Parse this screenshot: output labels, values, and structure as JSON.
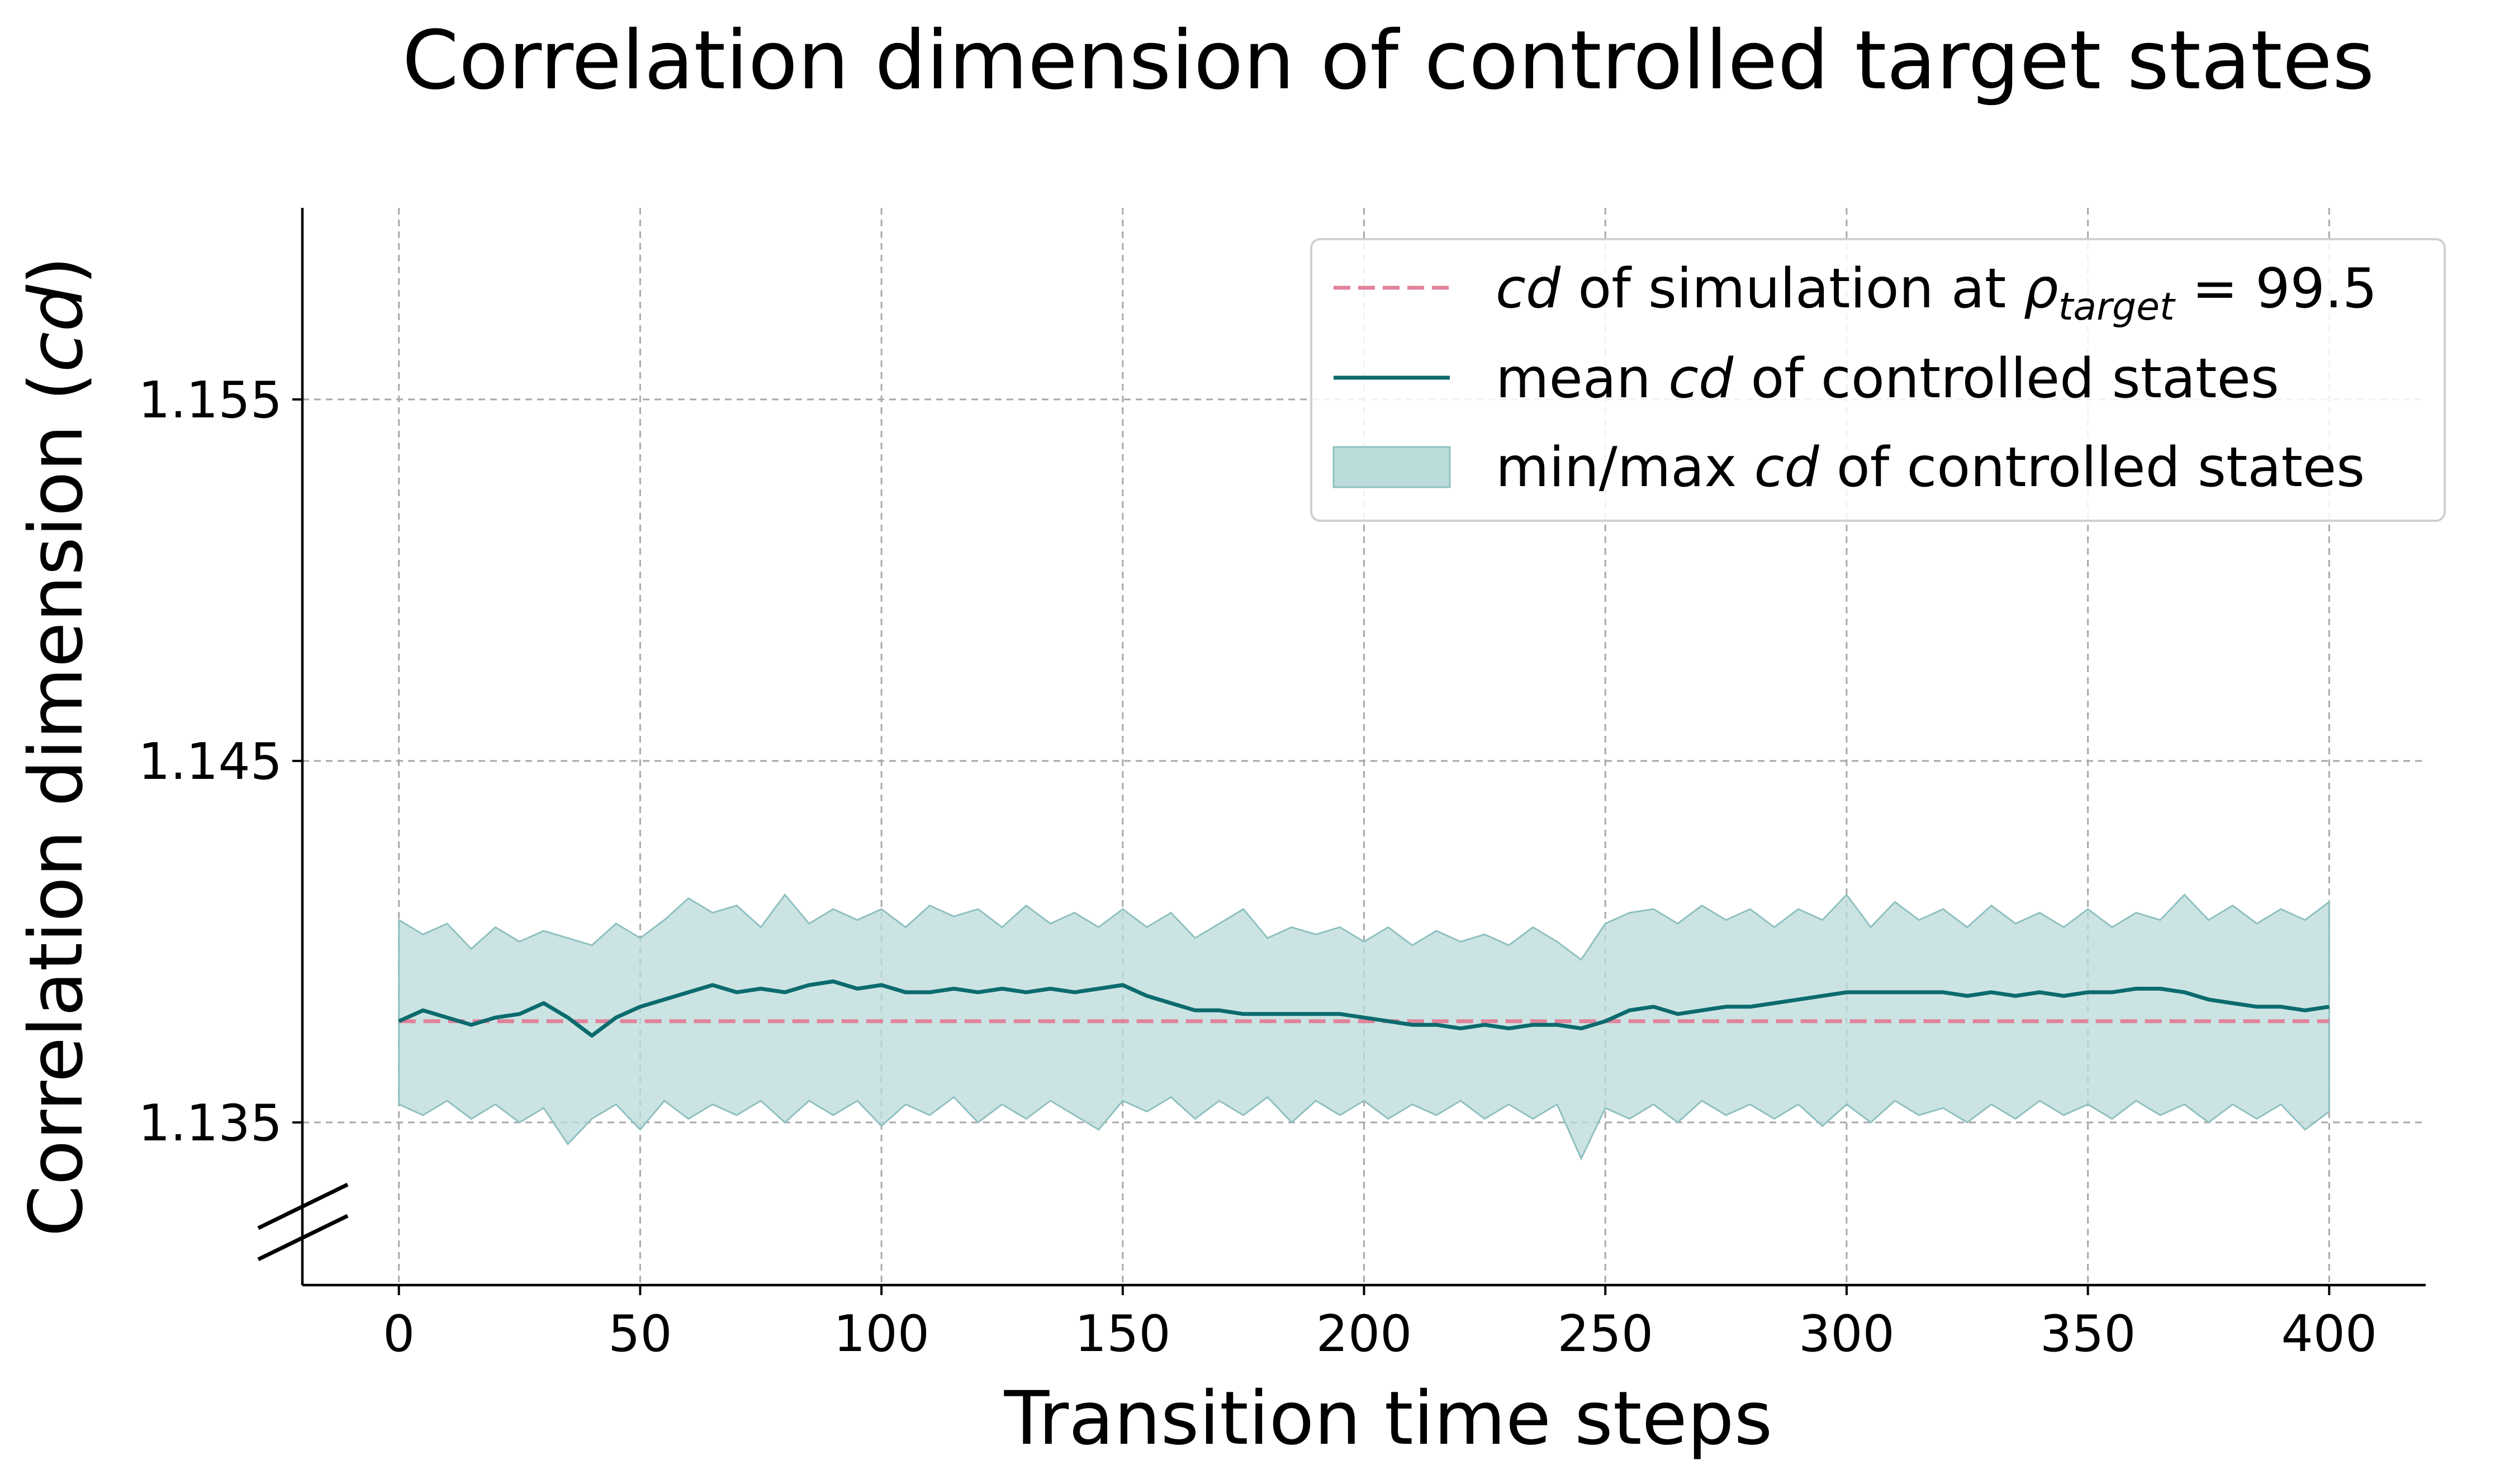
{
  "chart_data": {
    "type": "line",
    "title": "Correlation dimension of controlled target states",
    "xlabel": "Transition time steps",
    "ylabel_parts": {
      "main": "Correlation dimension (",
      "italic": "cd",
      "close": ")"
    },
    "xlim": [
      -20,
      420
    ],
    "ylim": [
      1.1305,
      1.1603
    ],
    "xticks": [
      0,
      50,
      100,
      150,
      200,
      250,
      300,
      350,
      400
    ],
    "xtick_labels": [
      "0",
      "50",
      "100",
      "150",
      "200",
      "250",
      "300",
      "350",
      "400"
    ],
    "yticks": [
      1.135,
      1.145,
      1.155
    ],
    "ytick_labels": [
      "1.135",
      "1.145",
      "1.155"
    ],
    "grid": true,
    "axis_break": "bottom-left of y axis",
    "legend_position": "top-right",
    "legend": [
      {
        "key": "ref",
        "style": "dashed-line",
        "parts": [
          {
            "text": "cd",
            "italic": true
          },
          {
            "text": " of simulation at ",
            "italic": false
          },
          {
            "text": "ρ",
            "italic": true
          },
          {
            "text": "target",
            "italic": true,
            "sub": true
          },
          {
            "text": " = 99.5",
            "italic": false
          }
        ]
      },
      {
        "key": "mean",
        "style": "line",
        "parts": [
          {
            "text": "mean ",
            "italic": false
          },
          {
            "text": "cd",
            "italic": true
          },
          {
            "text": " of controlled states",
            "italic": false
          }
        ]
      },
      {
        "key": "band",
        "style": "patch",
        "parts": [
          {
            "text": "min/max ",
            "italic": false
          },
          {
            "text": "cd",
            "italic": true
          },
          {
            "text": " of controlled states",
            "italic": false
          }
        ]
      }
    ],
    "colors": {
      "reference": "#e0839b",
      "mean": "#0c6b6e",
      "band_fill": "#bcdcdb",
      "band_edge": "#8fc1c0"
    },
    "reference_value": 1.1378,
    "series": [
      {
        "name": "mean cd of controlled states",
        "x": [
          0,
          5,
          10,
          15,
          20,
          25,
          30,
          35,
          40,
          45,
          50,
          55,
          60,
          65,
          70,
          75,
          80,
          85,
          90,
          95,
          100,
          105,
          110,
          115,
          120,
          125,
          130,
          135,
          140,
          145,
          150,
          155,
          160,
          165,
          170,
          175,
          180,
          185,
          190,
          195,
          200,
          205,
          210,
          215,
          220,
          225,
          230,
          235,
          240,
          245,
          250,
          255,
          260,
          265,
          270,
          275,
          280,
          285,
          290,
          295,
          300,
          305,
          310,
          315,
          320,
          325,
          330,
          335,
          340,
          345,
          350,
          355,
          360,
          365,
          370,
          375,
          380,
          385,
          390,
          395,
          400
        ],
        "y": [
          1.1378,
          1.1381,
          1.1379,
          1.1377,
          1.1379,
          1.138,
          1.1383,
          1.1379,
          1.1374,
          1.1379,
          1.1382,
          1.1384,
          1.1386,
          1.1388,
          1.1386,
          1.1387,
          1.1386,
          1.1388,
          1.1389,
          1.1387,
          1.1388,
          1.1386,
          1.1386,
          1.1387,
          1.1386,
          1.1387,
          1.1386,
          1.1387,
          1.1386,
          1.1387,
          1.1388,
          1.1385,
          1.1383,
          1.1381,
          1.1381,
          1.138,
          1.138,
          1.138,
          1.138,
          1.138,
          1.1379,
          1.1378,
          1.1377,
          1.1377,
          1.1376,
          1.1377,
          1.1376,
          1.1377,
          1.1377,
          1.1376,
          1.1378,
          1.1381,
          1.1382,
          1.138,
          1.1381,
          1.1382,
          1.1382,
          1.1383,
          1.1384,
          1.1385,
          1.1386,
          1.1386,
          1.1386,
          1.1386,
          1.1386,
          1.1385,
          1.1386,
          1.1385,
          1.1386,
          1.1385,
          1.1386,
          1.1386,
          1.1387,
          1.1387,
          1.1386,
          1.1384,
          1.1383,
          1.1382,
          1.1382,
          1.1381,
          1.1382
        ]
      },
      {
        "name": "max cd of controlled states",
        "x": [
          0,
          5,
          10,
          15,
          20,
          25,
          30,
          35,
          40,
          45,
          50,
          55,
          60,
          65,
          70,
          75,
          80,
          85,
          90,
          95,
          100,
          105,
          110,
          115,
          120,
          125,
          130,
          135,
          140,
          145,
          150,
          155,
          160,
          165,
          170,
          175,
          180,
          185,
          190,
          195,
          200,
          205,
          210,
          215,
          220,
          225,
          230,
          235,
          240,
          245,
          250,
          255,
          260,
          265,
          270,
          275,
          280,
          285,
          290,
          295,
          300,
          305,
          310,
          315,
          320,
          325,
          330,
          335,
          340,
          345,
          350,
          355,
          360,
          365,
          370,
          375,
          380,
          385,
          390,
          395,
          400
        ],
        "y": [
          1.1406,
          1.1402,
          1.1405,
          1.1398,
          1.1404,
          1.14,
          1.1403,
          1.1401,
          1.1399,
          1.1405,
          1.1401,
          1.1406,
          1.1412,
          1.1408,
          1.141,
          1.1404,
          1.1413,
          1.1405,
          1.1409,
          1.1406,
          1.1409,
          1.1404,
          1.141,
          1.1407,
          1.1409,
          1.1404,
          1.141,
          1.1405,
          1.1408,
          1.1404,
          1.1409,
          1.1404,
          1.1408,
          1.1401,
          1.1405,
          1.1409,
          1.1401,
          1.1404,
          1.1402,
          1.1404,
          1.14,
          1.1404,
          1.1399,
          1.1403,
          1.14,
          1.1402,
          1.1399,
          1.1404,
          1.14,
          1.1395,
          1.1405,
          1.1408,
          1.1409,
          1.1405,
          1.141,
          1.1406,
          1.1409,
          1.1404,
          1.1409,
          1.1406,
          1.1413,
          1.1404,
          1.1411,
          1.1406,
          1.1409,
          1.1404,
          1.141,
          1.1405,
          1.1408,
          1.1404,
          1.1409,
          1.1404,
          1.1408,
          1.1406,
          1.1413,
          1.1406,
          1.141,
          1.1405,
          1.1409,
          1.1406,
          1.1411
        ]
      },
      {
        "name": "min cd of controlled states",
        "x": [
          0,
          5,
          10,
          15,
          20,
          25,
          30,
          35,
          40,
          45,
          50,
          55,
          60,
          65,
          70,
          75,
          80,
          85,
          90,
          95,
          100,
          105,
          110,
          115,
          120,
          125,
          130,
          135,
          140,
          145,
          150,
          155,
          160,
          165,
          170,
          175,
          180,
          185,
          190,
          195,
          200,
          205,
          210,
          215,
          220,
          225,
          230,
          235,
          240,
          245,
          250,
          255,
          260,
          265,
          270,
          275,
          280,
          285,
          290,
          295,
          300,
          305,
          310,
          315,
          320,
          325,
          330,
          335,
          340,
          345,
          350,
          355,
          360,
          365,
          370,
          375,
          380,
          385,
          390,
          395,
          400
        ],
        "y": [
          1.1355,
          1.1352,
          1.1356,
          1.1351,
          1.1355,
          1.135,
          1.1354,
          1.1344,
          1.1351,
          1.1355,
          1.1348,
          1.1356,
          1.1351,
          1.1355,
          1.1352,
          1.1356,
          1.135,
          1.1356,
          1.1352,
          1.1356,
          1.1349,
          1.1355,
          1.1352,
          1.1357,
          1.135,
          1.1355,
          1.1351,
          1.1356,
          1.1352,
          1.1348,
          1.1356,
          1.1353,
          1.1357,
          1.1351,
          1.1356,
          1.1352,
          1.1357,
          1.135,
          1.1356,
          1.1352,
          1.1356,
          1.1351,
          1.1355,
          1.1352,
          1.1356,
          1.1351,
          1.1355,
          1.1351,
          1.1355,
          1.134,
          1.1354,
          1.1351,
          1.1355,
          1.135,
          1.1356,
          1.1352,
          1.1355,
          1.1351,
          1.1355,
          1.1349,
          1.1355,
          1.135,
          1.1356,
          1.1352,
          1.1354,
          1.135,
          1.1355,
          1.1351,
          1.1356,
          1.1352,
          1.1355,
          1.1351,
          1.1356,
          1.1352,
          1.1355,
          1.135,
          1.1355,
          1.1351,
          1.1355,
          1.1348,
          1.1353
        ]
      }
    ]
  }
}
